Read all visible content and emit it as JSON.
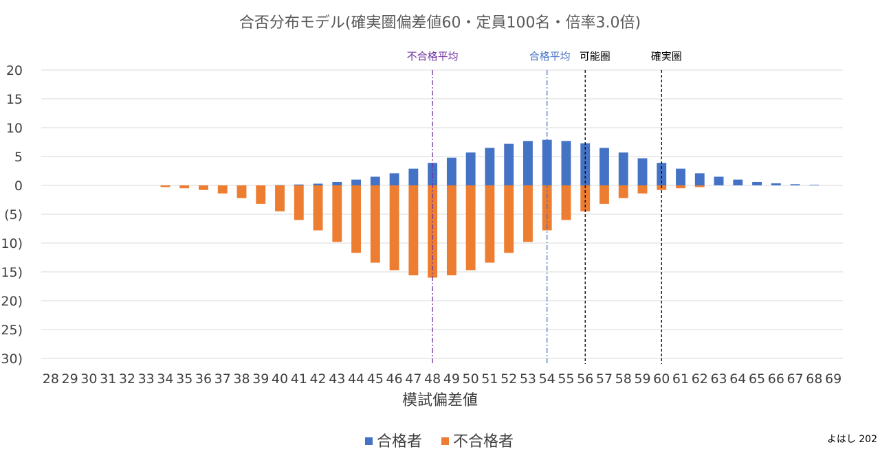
{
  "chart_data": {
    "type": "bar",
    "title": "合否分布モデル(確実圏偏差値60・定員100名・倍率3.0倍)",
    "xlabel": "模試偏差値",
    "ylabel": "",
    "ylim": [
      -30,
      20
    ],
    "yticks": [
      "20",
      "15",
      "10",
      "5",
      "0",
      "(5)",
      "(10)",
      "(15)",
      "(20)",
      "(25)",
      "(30)"
    ],
    "ytick_values": [
      20,
      15,
      10,
      5,
      0,
      -5,
      -10,
      -15,
      -20,
      -25,
      -30
    ],
    "grid": true,
    "legend_position": "bottom",
    "categories": [
      "28",
      "29",
      "30",
      "31",
      "32",
      "33",
      "34",
      "35",
      "36",
      "37",
      "38",
      "39",
      "40",
      "41",
      "42",
      "43",
      "44",
      "45",
      "46",
      "47",
      "48",
      "49",
      "50",
      "51",
      "52",
      "53",
      "54",
      "55",
      "56",
      "57",
      "58",
      "59",
      "60",
      "61",
      "62",
      "63",
      "64",
      "65",
      "66",
      "67",
      "68",
      "69"
    ],
    "series": [
      {
        "name": "合格者",
        "color": "#4472C4",
        "values": [
          0,
          0,
          0,
          0,
          0,
          0,
          0,
          0,
          0,
          0,
          0,
          0,
          0.05,
          0.15,
          0.3,
          0.6,
          1.0,
          1.5,
          2.1,
          2.9,
          3.9,
          4.8,
          5.7,
          6.5,
          7.2,
          7.7,
          7.9,
          7.7,
          7.3,
          6.5,
          5.7,
          4.7,
          3.9,
          2.9,
          2.1,
          1.5,
          1.0,
          0.6,
          0.35,
          0.2,
          0.1,
          0
        ]
      },
      {
        "name": "不合格者",
        "color": "#ED7D31",
        "values": [
          0,
          0,
          0,
          0,
          0,
          0,
          -0.3,
          -0.5,
          -0.8,
          -1.4,
          -2.2,
          -3.2,
          -4.5,
          -6.0,
          -7.8,
          -9.8,
          -11.7,
          -13.4,
          -14.7,
          -15.6,
          -16.0,
          -15.6,
          -14.7,
          -13.4,
          -11.7,
          -9.8,
          -7.8,
          -6.0,
          -4.5,
          -3.2,
          -2.2,
          -1.4,
          -0.8,
          -0.5,
          -0.3,
          0,
          0,
          0,
          0,
          0,
          0,
          0
        ]
      }
    ],
    "reference_lines": [
      {
        "label": "不合格平均",
        "x": "48",
        "color": "#7030A0"
      },
      {
        "label": "合格平均",
        "x": "54",
        "color": "#4472C4"
      },
      {
        "label": "可能圏",
        "x": "56",
        "color": "#000000"
      },
      {
        "label": "確実圏",
        "x": "60",
        "color": "#000000"
      }
    ]
  },
  "credit": "よはし 202"
}
